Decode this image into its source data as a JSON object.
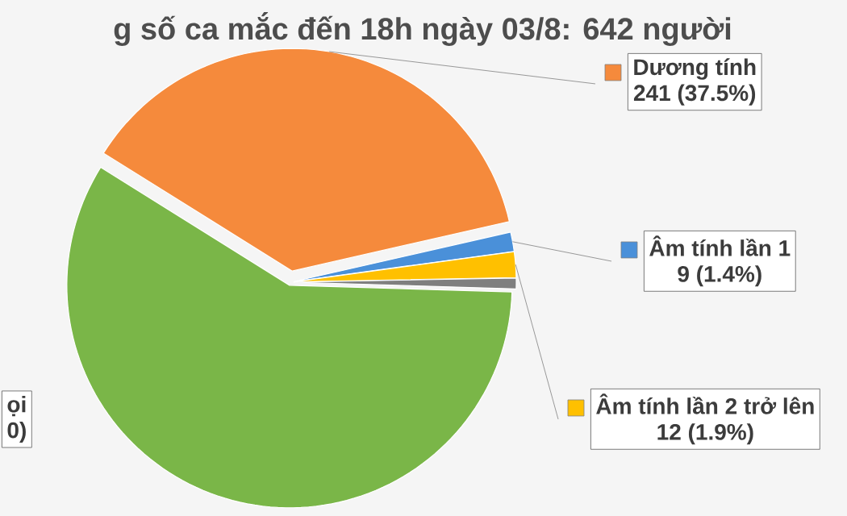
{
  "chart_data": {
    "type": "pie",
    "title": "g số ca mắc đến 18h ngày 03/8: 642 người",
    "categories": [
      "Dương tính",
      "Âm tính lần 1",
      "Âm tính lần 2 trở lên",
      null,
      null
    ],
    "values": [
      241,
      9,
      12,
      5,
      375
    ],
    "colors": [
      "#f58a3c",
      "#4a90d9",
      "#ffc000",
      "#7f7f7f",
      "#7ab648"
    ],
    "value_labels": [
      "241 (37.5%)",
      "9 (1.4%)",
      "12 (1.9%)",
      null,
      null
    ],
    "annotations": [
      "ọi",
      "0)"
    ],
    "legend": "right"
  }
}
